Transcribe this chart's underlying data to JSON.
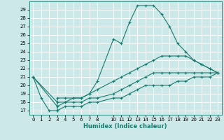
{
  "xlabel": "Humidex (Indice chaleur)",
  "bg_color": "#cce8e8",
  "grid_color": "#ffffff",
  "line_color": "#1a7a6e",
  "xlim": [
    -0.5,
    23.5
  ],
  "ylim": [
    16.5,
    30.0
  ],
  "xticks": [
    0,
    1,
    2,
    3,
    4,
    5,
    6,
    7,
    8,
    10,
    11,
    12,
    13,
    14,
    15,
    16,
    17,
    18,
    19,
    20,
    21,
    22,
    23
  ],
  "yticks": [
    17,
    18,
    19,
    20,
    21,
    22,
    23,
    24,
    25,
    26,
    27,
    28,
    29
  ],
  "series1": [
    [
      0,
      21.0
    ],
    [
      1,
      18.5
    ],
    [
      2,
      17.0
    ],
    [
      3,
      17.0
    ],
    [
      3,
      18.5
    ],
    [
      4,
      18.5
    ],
    [
      5,
      18.5
    ],
    [
      6,
      18.5
    ],
    [
      7,
      19.0
    ],
    [
      8,
      20.5
    ],
    [
      10,
      25.5
    ],
    [
      11,
      25.0
    ],
    [
      12,
      27.5
    ],
    [
      13,
      29.5
    ],
    [
      14,
      29.5
    ],
    [
      15,
      29.5
    ],
    [
      16,
      28.5
    ],
    [
      17,
      27.0
    ],
    [
      18,
      25.0
    ],
    [
      19,
      24.0
    ],
    [
      20,
      23.0
    ],
    [
      21,
      22.5
    ],
    [
      22,
      22.0
    ],
    [
      23,
      21.5
    ]
  ],
  "series2": [
    [
      0,
      21.0
    ],
    [
      3,
      18.0
    ],
    [
      4,
      18.0
    ],
    [
      5,
      18.5
    ],
    [
      6,
      18.5
    ],
    [
      7,
      19.0
    ],
    [
      8,
      19.5
    ],
    [
      10,
      20.5
    ],
    [
      11,
      21.0
    ],
    [
      12,
      21.5
    ],
    [
      13,
      22.0
    ],
    [
      14,
      22.5
    ],
    [
      15,
      23.0
    ],
    [
      16,
      23.5
    ],
    [
      17,
      23.5
    ],
    [
      18,
      23.5
    ],
    [
      19,
      23.5
    ],
    [
      20,
      23.0
    ],
    [
      21,
      22.5
    ],
    [
      22,
      22.0
    ],
    [
      23,
      21.5
    ]
  ],
  "series3": [
    [
      0,
      21.0
    ],
    [
      3,
      17.5
    ],
    [
      4,
      18.0
    ],
    [
      5,
      18.0
    ],
    [
      6,
      18.0
    ],
    [
      7,
      18.5
    ],
    [
      8,
      18.5
    ],
    [
      10,
      19.0
    ],
    [
      11,
      19.5
    ],
    [
      12,
      20.0
    ],
    [
      13,
      20.5
    ],
    [
      14,
      21.0
    ],
    [
      15,
      21.5
    ],
    [
      16,
      21.5
    ],
    [
      17,
      21.5
    ],
    [
      18,
      21.5
    ],
    [
      19,
      21.5
    ],
    [
      20,
      21.5
    ],
    [
      21,
      21.5
    ],
    [
      22,
      21.5
    ],
    [
      23,
      21.5
    ]
  ],
  "series4": [
    [
      3,
      17.0
    ],
    [
      4,
      17.5
    ],
    [
      5,
      17.5
    ],
    [
      6,
      17.5
    ],
    [
      7,
      18.0
    ],
    [
      8,
      18.0
    ],
    [
      10,
      18.5
    ],
    [
      11,
      18.5
    ],
    [
      12,
      19.0
    ],
    [
      13,
      19.5
    ],
    [
      14,
      20.0
    ],
    [
      15,
      20.0
    ],
    [
      16,
      20.0
    ],
    [
      17,
      20.0
    ],
    [
      18,
      20.5
    ],
    [
      19,
      20.5
    ],
    [
      20,
      21.0
    ],
    [
      21,
      21.0
    ],
    [
      22,
      21.0
    ],
    [
      23,
      21.5
    ]
  ]
}
